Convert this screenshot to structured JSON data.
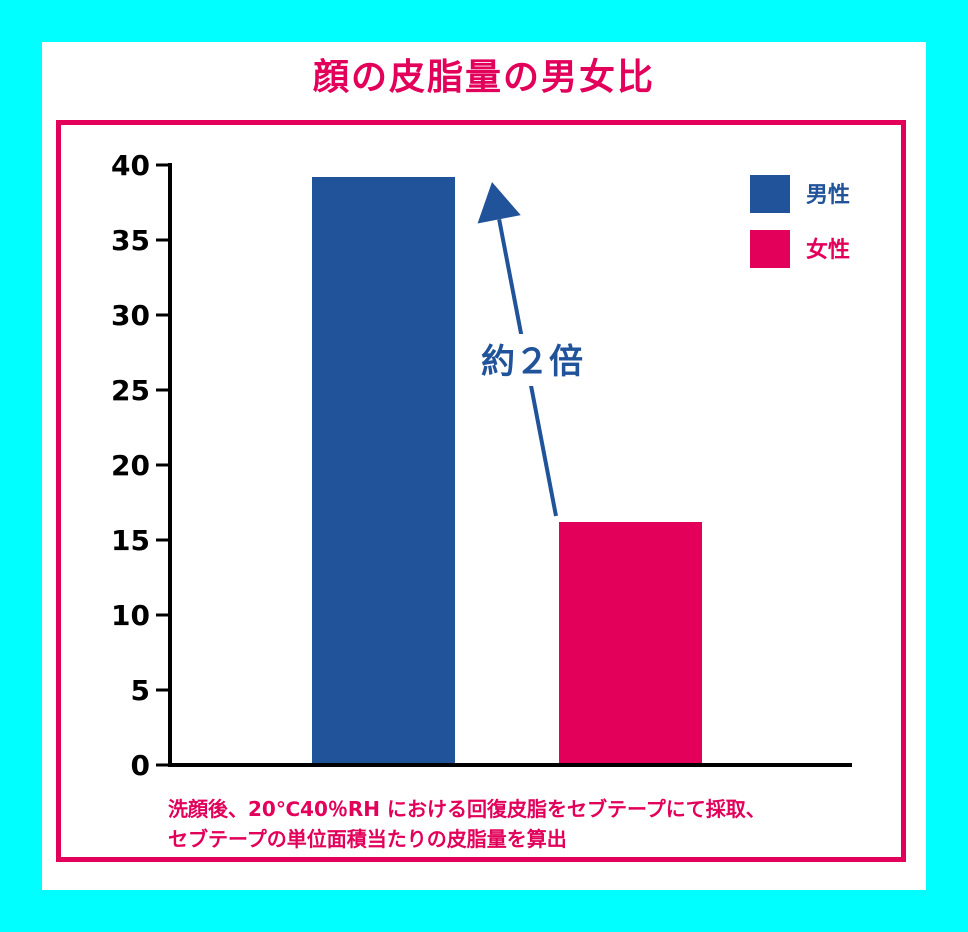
{
  "chart_data": {
    "type": "bar",
    "title": "顔の皮脂量の男女比",
    "categories": [
      "男性",
      "女性"
    ],
    "values": [
      39.2,
      16.2
    ],
    "ylim": [
      0,
      40
    ],
    "yticks": [
      0,
      5,
      10,
      15,
      20,
      25,
      30,
      35,
      40
    ],
    "legend": {
      "placement": "top-right",
      "entries": [
        "男性",
        "女性"
      ]
    },
    "annotation": "約２倍",
    "notes": [
      "洗顔後、20℃40％RH における回復皮脂をセブテープにて採取、",
      "セブテープの単位面積当たりの皮脂量を算出"
    ],
    "grid": false
  },
  "colors": {
    "male": "#21539a",
    "female": "#e2005a",
    "accent": "#e2005a",
    "background": "#00ffff"
  }
}
